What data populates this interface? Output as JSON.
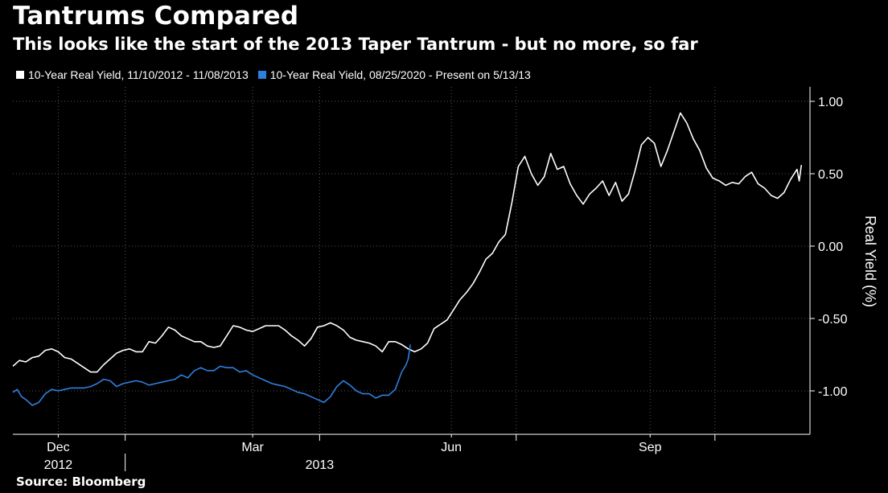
{
  "title": "Tantrums Compared",
  "subtitle": "This looks like the start of the 2013 Taper Tantrum - but no more, so far",
  "source": "Source: Bloomberg",
  "colors": {
    "background": "#000000",
    "series1": "#ffffff",
    "series2": "#2f7fdf",
    "grid": "#555555"
  },
  "legend": [
    {
      "label": "10-Year Real Yield, 11/10/2012 - 11/08/2013",
      "color": "#ffffff"
    },
    {
      "label": "10-Year Real Yield, 08/25/2020 - Present on 5/13/13",
      "color": "#2f7fdf"
    }
  ],
  "chart_data": {
    "type": "line",
    "title": "Tantrums Compared",
    "subtitle": "This looks like the start of the 2013 Taper Tantrum - but no more, so far",
    "ylabel": "Real Yield (%)",
    "ylim": [
      -1.3,
      1.1
    ],
    "yticks": [
      1.0,
      0.5,
      0.0,
      -0.5,
      -1.0
    ],
    "ytick_labels": [
      "1.00",
      "0.50",
      "0.00",
      "-0.50",
      "-1.00"
    ],
    "y_axis_position": "right",
    "xlim": [
      "2012-11-10",
      "2013-11-14"
    ],
    "x_month_ticks": [
      {
        "date": "2012-12-01",
        "label": "Dec"
      },
      {
        "date": "2013-03-01",
        "label": "Mar"
      },
      {
        "date": "2013-06-01",
        "label": "Jun"
      },
      {
        "date": "2013-09-01",
        "label": "Sep"
      }
    ],
    "x_minor_ticks": [
      "2013-01-01",
      "2013-04-01",
      "2013-07-01",
      "2013-10-01"
    ],
    "x_year_labels": [
      {
        "date": "2012-12-01",
        "label": "2012"
      },
      {
        "date": "2013-04-01",
        "label": "2013"
      }
    ],
    "x_year_separator": "2013-01-01",
    "grid": true,
    "legend_position": "top-left",
    "series": [
      {
        "name": "10-Year Real Yield, 11/10/2012 - 11/08/2013",
        "color": "#ffffff",
        "points": [
          [
            "2012-11-10",
            -0.83
          ],
          [
            "2012-11-13",
            -0.79
          ],
          [
            "2012-11-16",
            -0.8
          ],
          [
            "2012-11-19",
            -0.77
          ],
          [
            "2012-11-22",
            -0.76
          ],
          [
            "2012-11-25",
            -0.72
          ],
          [
            "2012-11-28",
            -0.71
          ],
          [
            "2012-12-01",
            -0.73
          ],
          [
            "2012-12-04",
            -0.77
          ],
          [
            "2012-12-07",
            -0.78
          ],
          [
            "2012-12-10",
            -0.81
          ],
          [
            "2012-12-13",
            -0.84
          ],
          [
            "2012-12-16",
            -0.87
          ],
          [
            "2012-12-19",
            -0.87
          ],
          [
            "2012-12-22",
            -0.82
          ],
          [
            "2012-12-25",
            -0.78
          ],
          [
            "2012-12-28",
            -0.74
          ],
          [
            "2012-12-31",
            -0.72
          ],
          [
            "2013-01-03",
            -0.71
          ],
          [
            "2013-01-06",
            -0.73
          ],
          [
            "2013-01-09",
            -0.73
          ],
          [
            "2013-01-12",
            -0.66
          ],
          [
            "2013-01-15",
            -0.67
          ],
          [
            "2013-01-18",
            -0.62
          ],
          [
            "2013-01-21",
            -0.56
          ],
          [
            "2013-01-24",
            -0.58
          ],
          [
            "2013-01-27",
            -0.62
          ],
          [
            "2013-01-30",
            -0.64
          ],
          [
            "2013-02-02",
            -0.66
          ],
          [
            "2013-02-05",
            -0.66
          ],
          [
            "2013-02-08",
            -0.69
          ],
          [
            "2013-02-11",
            -0.7
          ],
          [
            "2013-02-14",
            -0.69
          ],
          [
            "2013-02-17",
            -0.62
          ],
          [
            "2013-02-20",
            -0.55
          ],
          [
            "2013-02-23",
            -0.56
          ],
          [
            "2013-02-26",
            -0.58
          ],
          [
            "2013-03-01",
            -0.59
          ],
          [
            "2013-03-04",
            -0.57
          ],
          [
            "2013-03-07",
            -0.55
          ],
          [
            "2013-03-10",
            -0.55
          ],
          [
            "2013-03-13",
            -0.55
          ],
          [
            "2013-03-16",
            -0.58
          ],
          [
            "2013-03-19",
            -0.62
          ],
          [
            "2013-03-22",
            -0.65
          ],
          [
            "2013-03-25",
            -0.69
          ],
          [
            "2013-03-28",
            -0.64
          ],
          [
            "2013-03-31",
            -0.56
          ],
          [
            "2013-04-03",
            -0.55
          ],
          [
            "2013-04-06",
            -0.53
          ],
          [
            "2013-04-09",
            -0.55
          ],
          [
            "2013-04-12",
            -0.58
          ],
          [
            "2013-04-15",
            -0.63
          ],
          [
            "2013-04-18",
            -0.65
          ],
          [
            "2013-04-21",
            -0.66
          ],
          [
            "2013-04-24",
            -0.67
          ],
          [
            "2013-04-27",
            -0.69
          ],
          [
            "2013-04-30",
            -0.73
          ],
          [
            "2013-05-03",
            -0.66
          ],
          [
            "2013-05-06",
            -0.66
          ],
          [
            "2013-05-09",
            -0.68
          ],
          [
            "2013-05-12",
            -0.71
          ],
          [
            "2013-05-15",
            -0.73
          ],
          [
            "2013-05-18",
            -0.71
          ],
          [
            "2013-05-21",
            -0.67
          ],
          [
            "2013-05-24",
            -0.57
          ],
          [
            "2013-05-27",
            -0.54
          ],
          [
            "2013-05-30",
            -0.51
          ],
          [
            "2013-06-02",
            -0.44
          ],
          [
            "2013-06-05",
            -0.37
          ],
          [
            "2013-06-08",
            -0.32
          ],
          [
            "2013-06-11",
            -0.26
          ],
          [
            "2013-06-14",
            -0.18
          ],
          [
            "2013-06-17",
            -0.09
          ],
          [
            "2013-06-20",
            -0.05
          ],
          [
            "2013-06-23",
            0.03
          ],
          [
            "2013-06-26",
            0.08
          ],
          [
            "2013-06-29",
            0.3
          ],
          [
            "2013-07-02",
            0.55
          ],
          [
            "2013-07-05",
            0.62
          ],
          [
            "2013-07-08",
            0.5
          ],
          [
            "2013-07-11",
            0.42
          ],
          [
            "2013-07-14",
            0.48
          ],
          [
            "2013-07-17",
            0.64
          ],
          [
            "2013-07-20",
            0.53
          ],
          [
            "2013-07-23",
            0.55
          ],
          [
            "2013-07-26",
            0.43
          ],
          [
            "2013-07-29",
            0.35
          ],
          [
            "2013-08-01",
            0.29
          ],
          [
            "2013-08-04",
            0.36
          ],
          [
            "2013-08-07",
            0.4
          ],
          [
            "2013-08-10",
            0.45
          ],
          [
            "2013-08-13",
            0.35
          ],
          [
            "2013-08-16",
            0.44
          ],
          [
            "2013-08-19",
            0.31
          ],
          [
            "2013-08-22",
            0.36
          ],
          [
            "2013-08-25",
            0.52
          ],
          [
            "2013-08-28",
            0.7
          ],
          [
            "2013-08-31",
            0.75
          ],
          [
            "2013-09-03",
            0.71
          ],
          [
            "2013-09-06",
            0.55
          ],
          [
            "2013-09-09",
            0.66
          ],
          [
            "2013-09-12",
            0.79
          ],
          [
            "2013-09-15",
            0.92
          ],
          [
            "2013-09-18",
            0.85
          ],
          [
            "2013-09-21",
            0.74
          ],
          [
            "2013-09-24",
            0.66
          ],
          [
            "2013-09-27",
            0.54
          ],
          [
            "2013-09-30",
            0.47
          ],
          [
            "2013-10-03",
            0.45
          ],
          [
            "2013-10-06",
            0.42
          ],
          [
            "2013-10-09",
            0.44
          ],
          [
            "2013-10-12",
            0.43
          ],
          [
            "2013-10-15",
            0.48
          ],
          [
            "2013-10-18",
            0.51
          ],
          [
            "2013-10-21",
            0.43
          ],
          [
            "2013-10-24",
            0.4
          ],
          [
            "2013-10-27",
            0.35
          ],
          [
            "2013-10-30",
            0.33
          ],
          [
            "2013-11-02",
            0.37
          ],
          [
            "2013-11-05",
            0.46
          ],
          [
            "2013-11-08",
            0.53
          ],
          [
            "2013-11-09",
            0.45
          ],
          [
            "2013-11-10",
            0.56
          ]
        ]
      },
      {
        "name": "10-Year Real Yield, 08/25/2020 - Present on 5/13/13",
        "color": "#2f7fdf",
        "points": [
          [
            "2012-11-10",
            -1.01
          ],
          [
            "2012-11-12",
            -0.99
          ],
          [
            "2012-11-14",
            -1.04
          ],
          [
            "2012-11-16",
            -1.06
          ],
          [
            "2012-11-19",
            -1.1
          ],
          [
            "2012-11-22",
            -1.08
          ],
          [
            "2012-11-25",
            -1.02
          ],
          [
            "2012-11-28",
            -0.99
          ],
          [
            "2012-12-01",
            -1.0
          ],
          [
            "2012-12-04",
            -0.99
          ],
          [
            "2012-12-07",
            -0.98
          ],
          [
            "2012-12-10",
            -0.98
          ],
          [
            "2012-12-13",
            -0.98
          ],
          [
            "2012-12-16",
            -0.97
          ],
          [
            "2012-12-19",
            -0.95
          ],
          [
            "2012-12-22",
            -0.92
          ],
          [
            "2012-12-25",
            -0.93
          ],
          [
            "2012-12-28",
            -0.97
          ],
          [
            "2012-12-31",
            -0.95
          ],
          [
            "2013-01-03",
            -0.94
          ],
          [
            "2013-01-06",
            -0.93
          ],
          [
            "2013-01-09",
            -0.94
          ],
          [
            "2013-01-12",
            -0.96
          ],
          [
            "2013-01-15",
            -0.95
          ],
          [
            "2013-01-18",
            -0.94
          ],
          [
            "2013-01-21",
            -0.93
          ],
          [
            "2013-01-24",
            -0.92
          ],
          [
            "2013-01-27",
            -0.89
          ],
          [
            "2013-01-30",
            -0.91
          ],
          [
            "2013-02-02",
            -0.86
          ],
          [
            "2013-02-05",
            -0.84
          ],
          [
            "2013-02-08",
            -0.86
          ],
          [
            "2013-02-11",
            -0.86
          ],
          [
            "2013-02-14",
            -0.83
          ],
          [
            "2013-02-17",
            -0.84
          ],
          [
            "2013-02-20",
            -0.84
          ],
          [
            "2013-02-23",
            -0.87
          ],
          [
            "2013-02-26",
            -0.86
          ],
          [
            "2013-03-01",
            -0.89
          ],
          [
            "2013-03-04",
            -0.91
          ],
          [
            "2013-03-07",
            -0.93
          ],
          [
            "2013-03-10",
            -0.95
          ],
          [
            "2013-03-13",
            -0.96
          ],
          [
            "2013-03-16",
            -0.97
          ],
          [
            "2013-03-19",
            -0.99
          ],
          [
            "2013-03-22",
            -1.01
          ],
          [
            "2013-03-25",
            -1.02
          ],
          [
            "2013-03-28",
            -1.04
          ],
          [
            "2013-03-31",
            -1.06
          ],
          [
            "2013-04-03",
            -1.08
          ],
          [
            "2013-04-06",
            -1.04
          ],
          [
            "2013-04-09",
            -0.97
          ],
          [
            "2013-04-12",
            -0.93
          ],
          [
            "2013-04-15",
            -0.96
          ],
          [
            "2013-04-18",
            -1.0
          ],
          [
            "2013-04-21",
            -1.02
          ],
          [
            "2013-04-24",
            -1.02
          ],
          [
            "2013-04-27",
            -1.05
          ],
          [
            "2013-04-30",
            -1.03
          ],
          [
            "2013-05-03",
            -1.03
          ],
          [
            "2013-05-06",
            -0.99
          ],
          [
            "2013-05-09",
            -0.87
          ],
          [
            "2013-05-11",
            -0.82
          ],
          [
            "2013-05-12",
            -0.78
          ],
          [
            "2013-05-13",
            -0.68
          ]
        ]
      }
    ]
  }
}
